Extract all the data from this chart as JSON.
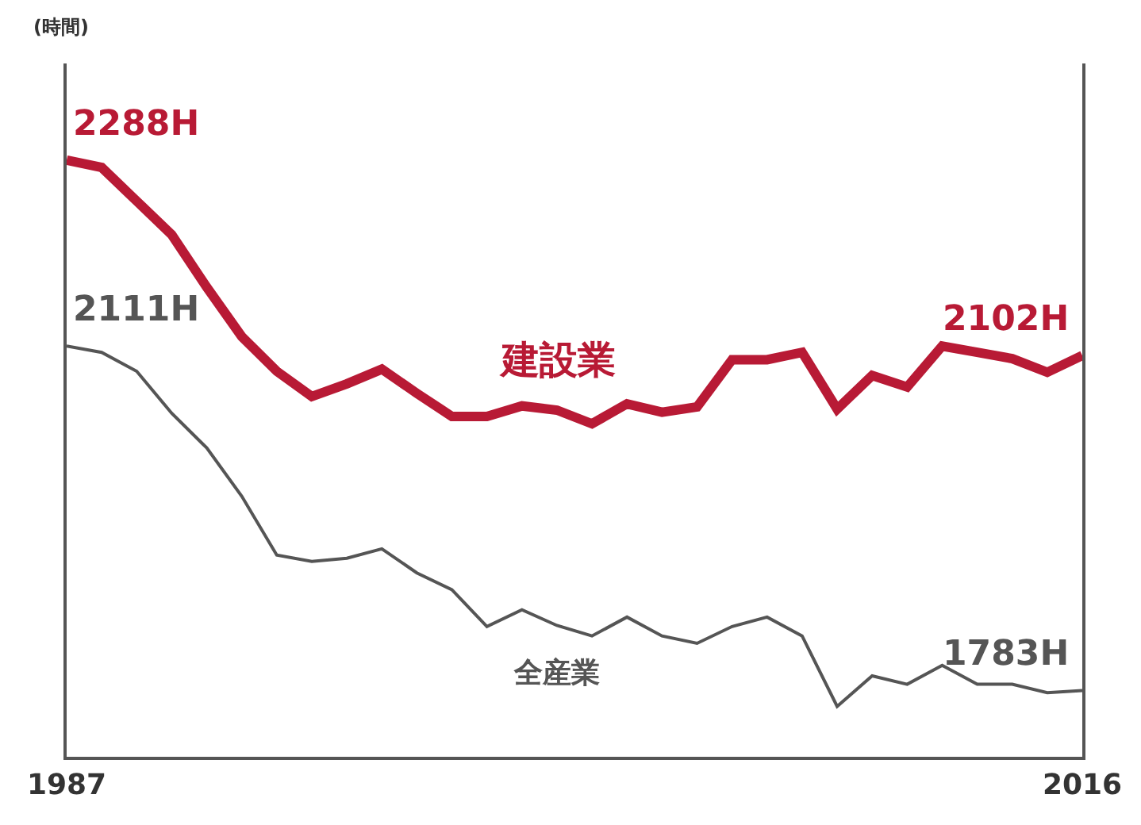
{
  "chart_data": {
    "type": "line",
    "ylabel": "(時間)",
    "x": [
      1987,
      1988,
      1989,
      1990,
      1991,
      1992,
      1993,
      1994,
      1995,
      1996,
      1997,
      1998,
      1999,
      2000,
      2001,
      2002,
      2003,
      2004,
      2005,
      2006,
      2007,
      2008,
      2009,
      2010,
      2011,
      2012,
      2013,
      2014,
      2015,
      2016
    ],
    "xlim": [
      1987,
      2016
    ],
    "xticks": [
      1987,
      2016
    ],
    "ylim": [
      1720,
      2380
    ],
    "tick_labels": "x",
    "legend": false,
    "marker": "none",
    "line_style": "solid",
    "series": [
      {
        "name": "建設業",
        "color": "#b81a35",
        "values": [
          2288,
          2281,
          2249,
          2217,
          2167,
          2120,
          2087,
          2063,
          2075,
          2089,
          2066,
          2044,
          2044,
          2054,
          2050,
          2037,
          2056,
          2048,
          2053,
          2098,
          2098,
          2105,
          2051,
          2083,
          2072,
          2111,
          2105,
          2099,
          2086,
          2102
        ],
        "value_labels": [
          "2288H",
          null,
          null,
          null,
          null,
          null,
          null,
          null,
          null,
          null,
          null,
          null,
          null,
          null,
          null,
          null,
          null,
          null,
          null,
          null,
          null,
          null,
          null,
          null,
          null,
          null,
          null,
          null,
          null,
          "2102H"
        ]
      },
      {
        "name": "全産業",
        "color": "#555555",
        "values": [
          2111,
          2105,
          2087,
          2047,
          2014,
          1968,
          1912,
          1906,
          1909,
          1918,
          1895,
          1879,
          1844,
          1860,
          1845,
          1835,
          1853,
          1835,
          1828,
          1844,
          1853,
          1835,
          1768,
          1797,
          1789,
          1807,
          1789,
          1789,
          1781,
          1783
        ],
        "value_labels": [
          "2111H",
          null,
          null,
          null,
          null,
          null,
          null,
          null,
          null,
          null,
          null,
          null,
          null,
          null,
          null,
          null,
          null,
          null,
          null,
          null,
          null,
          null,
          null,
          null,
          null,
          null,
          null,
          null,
          null,
          "1783H"
        ]
      }
    ]
  }
}
